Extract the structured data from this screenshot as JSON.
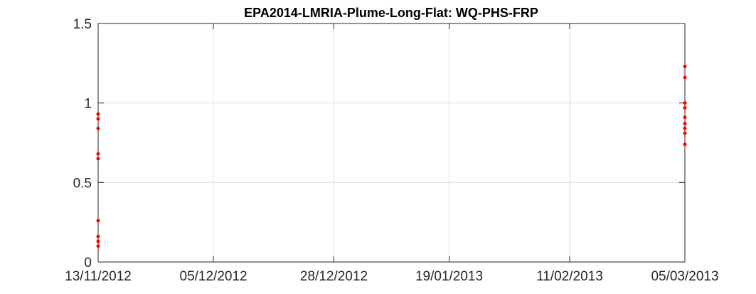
{
  "chart_data": {
    "type": "scatter",
    "title": "EPA2014-LMRIA-Plume-Long-Flat: WQ-PHS-FRP",
    "xlabel": "",
    "ylabel": "",
    "x_axis_type": "date",
    "xlim": [
      "13/11/2012",
      "05/03/2013"
    ],
    "ylim": [
      0,
      1.5
    ],
    "x_ticks": [
      "13/11/2012",
      "05/12/2012",
      "28/12/2012",
      "19/01/2013",
      "11/02/2013",
      "05/03/2013"
    ],
    "y_ticks": [
      0,
      0.5,
      1,
      1.5
    ],
    "y_tick_labels": [
      "0",
      "0.5",
      "1",
      "1.5"
    ],
    "grid": true,
    "legend": "none",
    "marker_color": "#ff0000",
    "series": [
      {
        "points": [
          {
            "x": "13/11/2012",
            "y": 0.93
          },
          {
            "x": "13/11/2012",
            "y": 0.9
          },
          {
            "x": "13/11/2012",
            "y": 0.84
          },
          {
            "x": "13/11/2012",
            "y": 0.68
          },
          {
            "x": "13/11/2012",
            "y": 0.65
          },
          {
            "x": "13/11/2012",
            "y": 0.26
          },
          {
            "x": "13/11/2012",
            "y": 0.16
          },
          {
            "x": "13/11/2012",
            "y": 0.13
          },
          {
            "x": "13/11/2012",
            "y": 0.1
          },
          {
            "x": "05/03/2013",
            "y": 1.23
          },
          {
            "x": "05/03/2013",
            "y": 1.16
          },
          {
            "x": "05/03/2013",
            "y": 1.0
          },
          {
            "x": "05/03/2013",
            "y": 0.97
          },
          {
            "x": "05/03/2013",
            "y": 0.91
          },
          {
            "x": "05/03/2013",
            "y": 0.87
          },
          {
            "x": "05/03/2013",
            "y": 0.84
          },
          {
            "x": "05/03/2013",
            "y": 0.81
          },
          {
            "x": "05/03/2013",
            "y": 0.74
          }
        ]
      }
    ]
  }
}
